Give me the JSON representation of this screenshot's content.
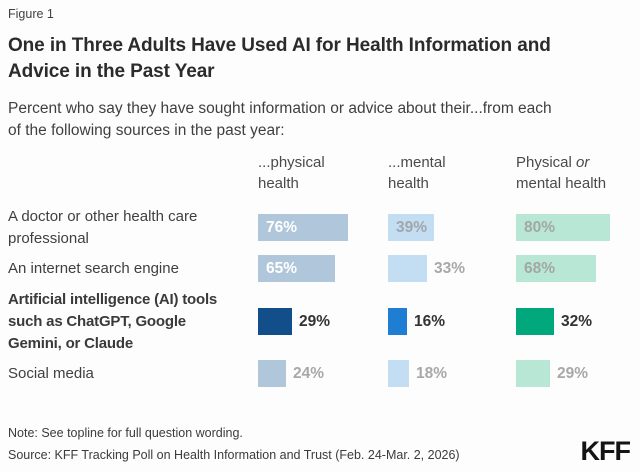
{
  "figure_label": "Figure 1",
  "note": "Note: See topline for full question wording.",
  "source": "Source: KFF Tracking Poll on Health Information and Trust (Feb. 24-Mar. 2, 2026)",
  "logo": "KFF",
  "chart_data": {
    "type": "bar",
    "orientation": "horizontal",
    "unit": "percent",
    "title": "One in Three Adults Have Used AI for Health Information and\nAdvice in the Past Year",
    "subtitle": "Percent who say they have sought information or advice about their...from each\nof the following sources in the past year:",
    "xlim": [
      0,
      100
    ],
    "grid": false,
    "legend": "none",
    "columns": [
      {
        "id": "physical-health",
        "header": [
          [
            {
              "text": "...physical"
            }
          ],
          [
            {
              "text": "health"
            }
          ]
        ],
        "bar_color": "#b0c6da",
        "highlight_color": "#124f8a",
        "inside_label_color": "#ffffff"
      },
      {
        "id": "mental-health",
        "header": [
          [
            {
              "text": "...mental"
            }
          ],
          [
            {
              "text": "health"
            }
          ]
        ],
        "bar_color": "#c3ddf2",
        "highlight_color": "#1f7ed3",
        "inside_label_color": "#a2a6ab"
      },
      {
        "id": "physical-or-mental-health",
        "header": [
          [
            {
              "text": "Physical "
            },
            {
              "text": "or",
              "italic": true
            }
          ],
          [
            {
              "text": "mental health"
            }
          ]
        ],
        "bar_color": "#b9e7d5",
        "highlight_color": "#00a87c",
        "inside_label_color": "#a2a8a4"
      }
    ],
    "rows": [
      {
        "id": "doctor",
        "label_lines": [
          "A doctor or other health care",
          "professional"
        ],
        "bold": false,
        "highlight": false,
        "values": [
          76,
          39,
          80
        ],
        "display": [
          "76%",
          "39%",
          "80%"
        ],
        "label_inside": [
          true,
          true,
          true
        ]
      },
      {
        "id": "search-engine",
        "label_lines": [
          "An internet search engine"
        ],
        "bold": false,
        "highlight": false,
        "values": [
          65,
          33,
          68
        ],
        "display": [
          "65%",
          "33%",
          "68%"
        ],
        "label_inside": [
          true,
          false,
          true
        ]
      },
      {
        "id": "ai-tools",
        "label_lines": [
          "Artificial intelligence (AI) tools",
          "such as ChatGPT, Google",
          "Gemini, or Claude"
        ],
        "bold": true,
        "highlight": true,
        "values": [
          29,
          16,
          32
        ],
        "display": [
          "29%",
          "16%",
          "32%"
        ],
        "label_inside": [
          false,
          false,
          false
        ]
      },
      {
        "id": "social-media",
        "label_lines": [
          "Social media"
        ],
        "bold": false,
        "highlight": false,
        "values": [
          24,
          18,
          29
        ],
        "display": [
          "24%",
          "18%",
          "29%"
        ],
        "label_inside": [
          false,
          false,
          false
        ]
      }
    ],
    "outside_label_colors": {
      "highlight": "#333333",
      "normal": "#a8a8a8"
    }
  }
}
